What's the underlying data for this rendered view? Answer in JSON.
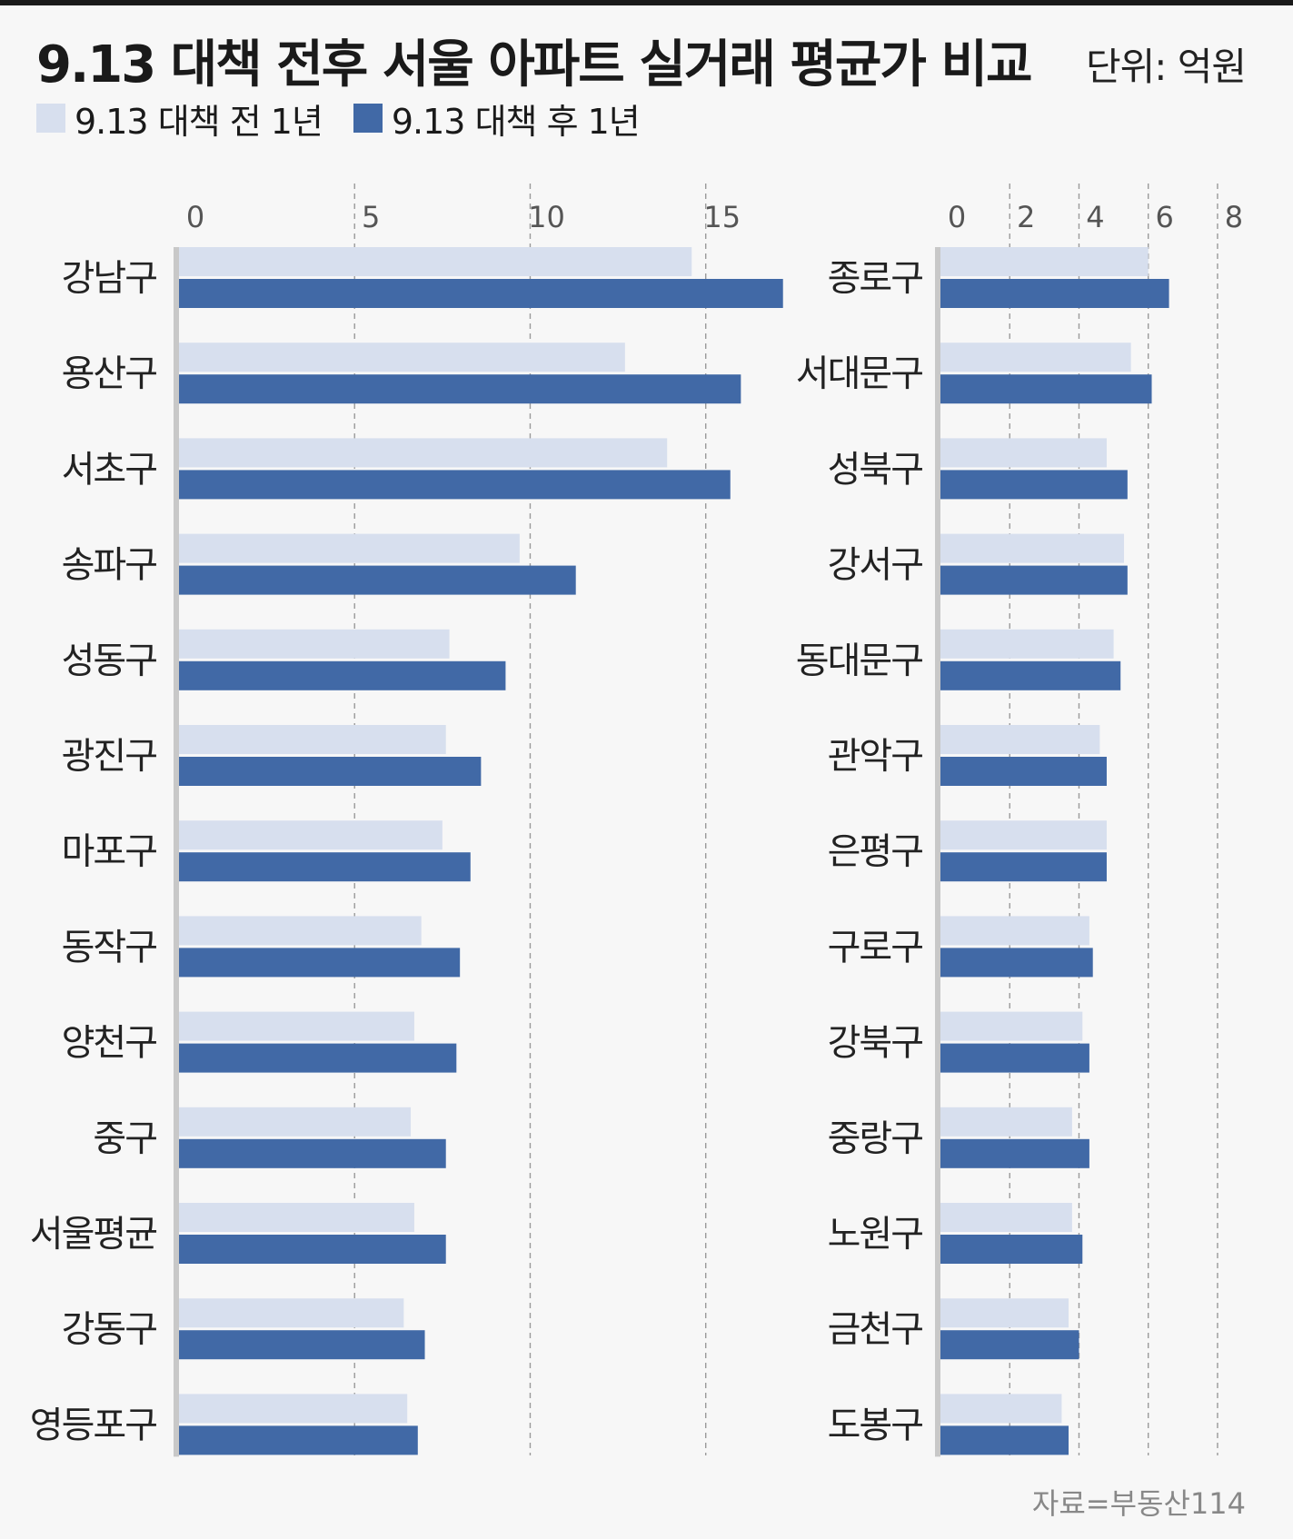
{
  "title": "9.13 대책 전후 서울 아파트 실거래 평균가 비교",
  "unit": "단위: 억원",
  "source": "자료=부동산114",
  "colors": {
    "before": "#d7dfee",
    "after": "#4169a6",
    "grid": "#9a9a9a",
    "axis": "#c8c8c8"
  },
  "legend": [
    {
      "label": "9.13 대책 전 1년",
      "color": "#d7dfee"
    },
    {
      "label": "9.13 대책 후 1년",
      "color": "#4169a6"
    }
  ],
  "chart_data": [
    {
      "type": "bar",
      "orientation": "horizontal",
      "xlim": [
        0,
        17
      ],
      "ticks": [
        0,
        5,
        10,
        15
      ],
      "grid": true,
      "categories": [
        "강남구",
        "용산구",
        "서초구",
        "송파구",
        "성동구",
        "광진구",
        "마포구",
        "동작구",
        "양천구",
        "중구",
        "서울평균",
        "강동구",
        "영등포구"
      ],
      "series": [
        {
          "name": "9.13 대책 전 1년",
          "values": [
            14.6,
            12.7,
            13.9,
            9.7,
            7.7,
            7.6,
            7.5,
            6.9,
            6.7,
            6.6,
            6.7,
            6.4,
            6.5
          ]
        },
        {
          "name": "9.13 대책 후 1년",
          "values": [
            17.2,
            16.0,
            15.7,
            11.3,
            9.3,
            8.6,
            8.3,
            8.0,
            7.9,
            7.6,
            7.6,
            7.0,
            6.8
          ]
        }
      ]
    },
    {
      "type": "bar",
      "orientation": "horizontal",
      "xlim": [
        0,
        8.5
      ],
      "ticks": [
        0,
        2,
        4,
        6,
        8
      ],
      "grid": true,
      "categories": [
        "종로구",
        "서대문구",
        "성북구",
        "강서구",
        "동대문구",
        "관악구",
        "은평구",
        "구로구",
        "강북구",
        "중랑구",
        "노원구",
        "금천구",
        "도봉구"
      ],
      "series": [
        {
          "name": "9.13 대책 전 1년",
          "values": [
            6.0,
            5.5,
            4.8,
            5.3,
            5.0,
            4.6,
            4.8,
            4.3,
            4.1,
            3.8,
            3.8,
            3.7,
            3.5
          ]
        },
        {
          "name": "9.13 대책 후 1년",
          "values": [
            6.6,
            6.1,
            5.4,
            5.4,
            5.2,
            4.8,
            4.8,
            4.4,
            4.3,
            4.3,
            4.1,
            4.0,
            3.7
          ]
        }
      ]
    }
  ]
}
